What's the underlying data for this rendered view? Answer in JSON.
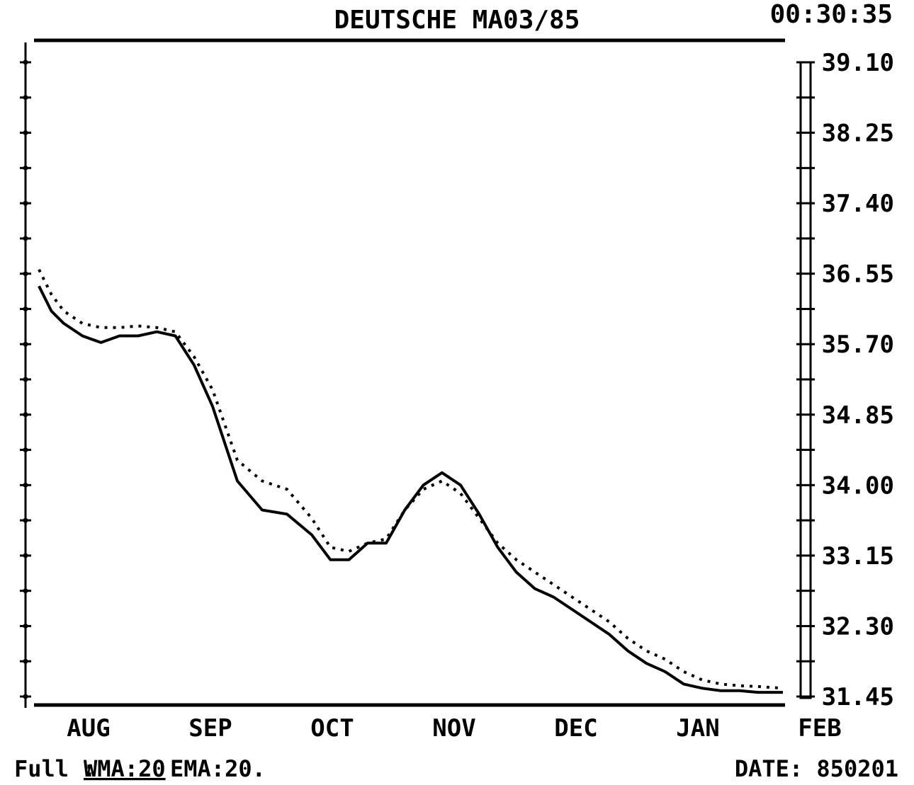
{
  "header": {
    "title": "DEUTSCHE MA03/85",
    "clock": "00:30:35"
  },
  "footer": {
    "mode_prefix": "Full :",
    "wma": "WMA:20",
    "ema": "EMA:20.",
    "date": "DATE: 850201"
  },
  "chart_data": {
    "type": "line",
    "title": "DEUTSCHE MA03/85",
    "ylim": [
      31.45,
      39.1
    ],
    "y_ticks": [
      "39.10",
      "38.25",
      "37.40",
      "36.55",
      "35.70",
      "34.85",
      "34.00",
      "33.15",
      "32.30",
      "31.45"
    ],
    "x_ticks": [
      "AUG",
      "SEP",
      "OCT",
      "NOV",
      "DEC",
      "JAN",
      "FEB"
    ],
    "x_tick_positions": [
      0.67,
      1.67,
      2.67,
      3.67,
      4.67,
      5.67,
      6.5
    ],
    "xlim": [
      0.5,
      6.5
    ],
    "grid": false,
    "legend": "none",
    "series": [
      {
        "style": "solid",
        "x": [
          0.5,
          0.6,
          0.7,
          0.85,
          1.0,
          1.15,
          1.3,
          1.45,
          1.6,
          1.75,
          1.9,
          2.1,
          2.3,
          2.5,
          2.7,
          2.85,
          3.0,
          3.15,
          3.3,
          3.45,
          3.6,
          3.75,
          3.9,
          4.05,
          4.2,
          4.35,
          4.5,
          4.65,
          4.8,
          4.95,
          5.1,
          5.25,
          5.4,
          5.55,
          5.7,
          5.85,
          6.0,
          6.15,
          6.3,
          6.5
        ],
        "values": [
          36.4,
          36.1,
          35.95,
          35.8,
          35.72,
          35.8,
          35.8,
          35.85,
          35.8,
          35.45,
          34.95,
          34.05,
          33.7,
          33.65,
          33.4,
          33.1,
          33.1,
          33.3,
          33.3,
          33.7,
          34.0,
          34.15,
          34.0,
          33.65,
          33.25,
          32.95,
          32.75,
          32.65,
          32.5,
          32.35,
          32.2,
          32.0,
          31.85,
          31.75,
          31.6,
          31.55,
          31.52,
          31.52,
          31.5,
          31.5
        ]
      },
      {
        "style": "dotted",
        "x": [
          0.5,
          0.6,
          0.7,
          0.85,
          1.0,
          1.15,
          1.3,
          1.45,
          1.6,
          1.75,
          1.9,
          2.1,
          2.3,
          2.5,
          2.7,
          2.85,
          3.0,
          3.15,
          3.3,
          3.45,
          3.6,
          3.75,
          3.9,
          4.05,
          4.2,
          4.35,
          4.5,
          4.65,
          4.8,
          4.95,
          5.1,
          5.25,
          5.4,
          5.55,
          5.7,
          5.85,
          6.0,
          6.15,
          6.3,
          6.5
        ],
        "values": [
          36.6,
          36.3,
          36.1,
          35.95,
          35.9,
          35.9,
          35.92,
          35.9,
          35.85,
          35.55,
          35.15,
          34.3,
          34.05,
          33.95,
          33.6,
          33.25,
          33.2,
          33.3,
          33.35,
          33.7,
          33.95,
          34.05,
          33.9,
          33.6,
          33.3,
          33.1,
          32.95,
          32.8,
          32.65,
          32.5,
          32.35,
          32.15,
          32.0,
          31.9,
          31.75,
          31.65,
          31.6,
          31.58,
          31.57,
          31.55
        ]
      }
    ]
  }
}
